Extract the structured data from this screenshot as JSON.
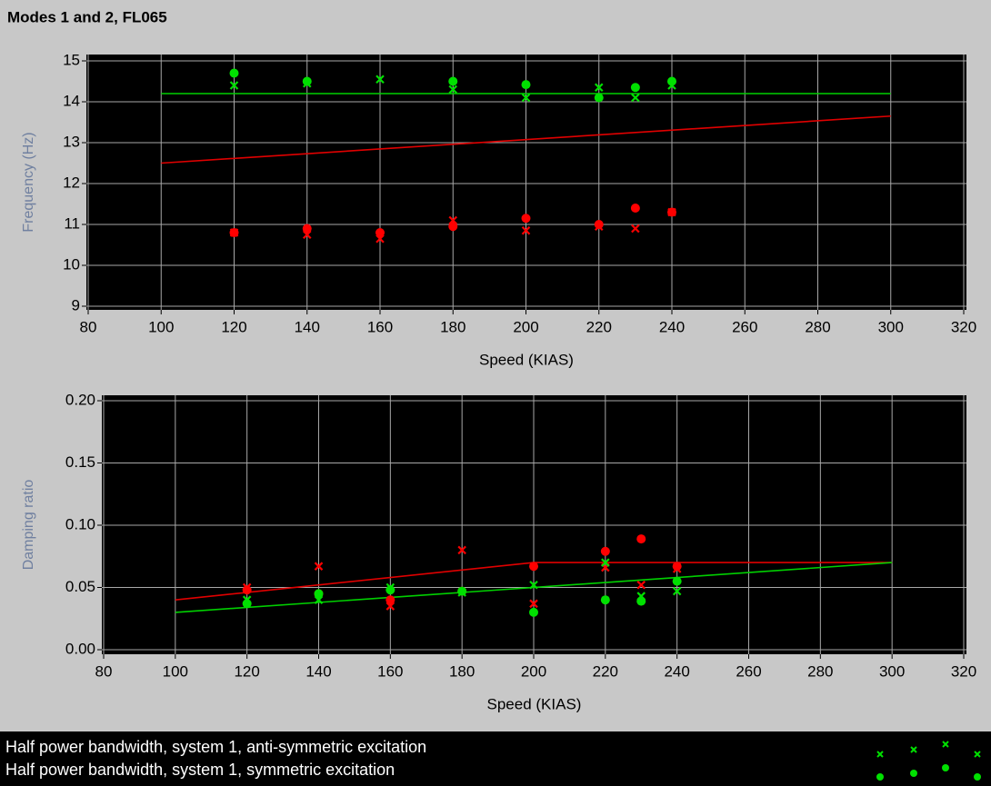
{
  "title": "Modes  1 and 2, FL065",
  "legend": [
    "Half power bandwidth, system 1, anti-symmetric excitation",
    "Half power bandwidth, system 1, symmetric excitation"
  ],
  "chart_data": [
    {
      "type": "scatter",
      "xlabel": "Speed (KIAS)",
      "ylabel": "Frequency (Hz)",
      "xlim": [
        80,
        320
      ],
      "xticks": [
        80,
        100,
        120,
        140,
        160,
        180,
        200,
        220,
        240,
        260,
        280,
        300,
        320
      ],
      "ylim": [
        9,
        15
      ],
      "yticks": [
        9,
        10,
        11,
        12,
        13,
        14,
        15
      ],
      "grid": true,
      "series": [
        {
          "kind": "line",
          "color": "#00d000",
          "x": [
            100,
            300
          ],
          "values": [
            14.2,
            14.2
          ]
        },
        {
          "kind": "line",
          "color": "#e00000",
          "x": [
            100,
            300
          ],
          "values": [
            12.5,
            13.65
          ]
        },
        {
          "kind": "scatter",
          "marker": "circle",
          "color": "#00e000",
          "x": [
            120,
            140,
            180,
            200,
            220,
            230,
            240
          ],
          "values": [
            14.7,
            14.5,
            14.5,
            14.42,
            14.1,
            14.35,
            14.5
          ]
        },
        {
          "kind": "scatter",
          "marker": "x",
          "color": "#00e000",
          "x": [
            120,
            140,
            160,
            180,
            200,
            220,
            230,
            240
          ],
          "values": [
            14.4,
            14.45,
            14.55,
            14.3,
            14.1,
            14.35,
            14.1,
            14.4
          ]
        },
        {
          "kind": "scatter",
          "marker": "circle",
          "color": "#ff0000",
          "x": [
            120,
            140,
            160,
            180,
            200,
            220,
            230,
            240
          ],
          "values": [
            10.8,
            10.9,
            10.8,
            10.95,
            11.15,
            11.0,
            11.4,
            11.3
          ]
        },
        {
          "kind": "scatter",
          "marker": "x",
          "color": "#ff0000",
          "x": [
            120,
            140,
            160,
            180,
            200,
            220,
            230,
            240
          ],
          "values": [
            10.8,
            10.75,
            10.65,
            11.1,
            10.85,
            10.95,
            10.9,
            11.3
          ]
        }
      ]
    },
    {
      "type": "scatter",
      "xlabel": "Speed (KIAS)",
      "ylabel": "Damping ratio",
      "xlim": [
        80,
        320
      ],
      "xticks": [
        80,
        100,
        120,
        140,
        160,
        180,
        200,
        220,
        240,
        260,
        280,
        300,
        320
      ],
      "ylim": [
        0,
        0.2
      ],
      "yticks": [
        {
          "value": 0,
          "label": "0.00"
        },
        {
          "value": 0.05,
          "label": "0.05"
        },
        {
          "value": 0.1,
          "label": "0.10"
        },
        {
          "value": 0.15,
          "label": "0.15"
        },
        {
          "value": 0.2,
          "label": "0.20"
        }
      ],
      "grid": true,
      "series": [
        {
          "kind": "line",
          "color": "#e00000",
          "x": [
            100,
            200,
            300
          ],
          "values": [
            0.04,
            0.07,
            0.07
          ]
        },
        {
          "kind": "line",
          "color": "#00d000",
          "x": [
            100,
            300
          ],
          "values": [
            0.03,
            0.07
          ]
        },
        {
          "kind": "scatter",
          "marker": "circle",
          "color": "#ff0000",
          "x": [
            120,
            140,
            160,
            180,
            200,
            220,
            230,
            240
          ],
          "values": [
            0.048,
            0.045,
            0.04,
            0.047,
            0.067,
            0.079,
            0.089,
            0.067
          ]
        },
        {
          "kind": "scatter",
          "marker": "x",
          "color": "#ff0000",
          "x": [
            120,
            140,
            160,
            180,
            200,
            220,
            230,
            240
          ],
          "values": [
            0.05,
            0.067,
            0.035,
            0.08,
            0.037,
            0.066,
            0.052,
            0.065
          ]
        },
        {
          "kind": "scatter",
          "marker": "circle",
          "color": "#00e000",
          "x": [
            120,
            140,
            160,
            180,
            200,
            220,
            230,
            240
          ],
          "values": [
            0.037,
            0.045,
            0.048,
            0.047,
            0.03,
            0.04,
            0.039,
            0.055
          ]
        },
        {
          "kind": "scatter",
          "marker": "x",
          "color": "#00e000",
          "x": [
            120,
            140,
            160,
            180,
            200,
            220,
            230,
            240
          ],
          "values": [
            0.04,
            0.04,
            0.05,
            0.046,
            0.052,
            0.07,
            0.043,
            0.047
          ]
        }
      ]
    }
  ]
}
